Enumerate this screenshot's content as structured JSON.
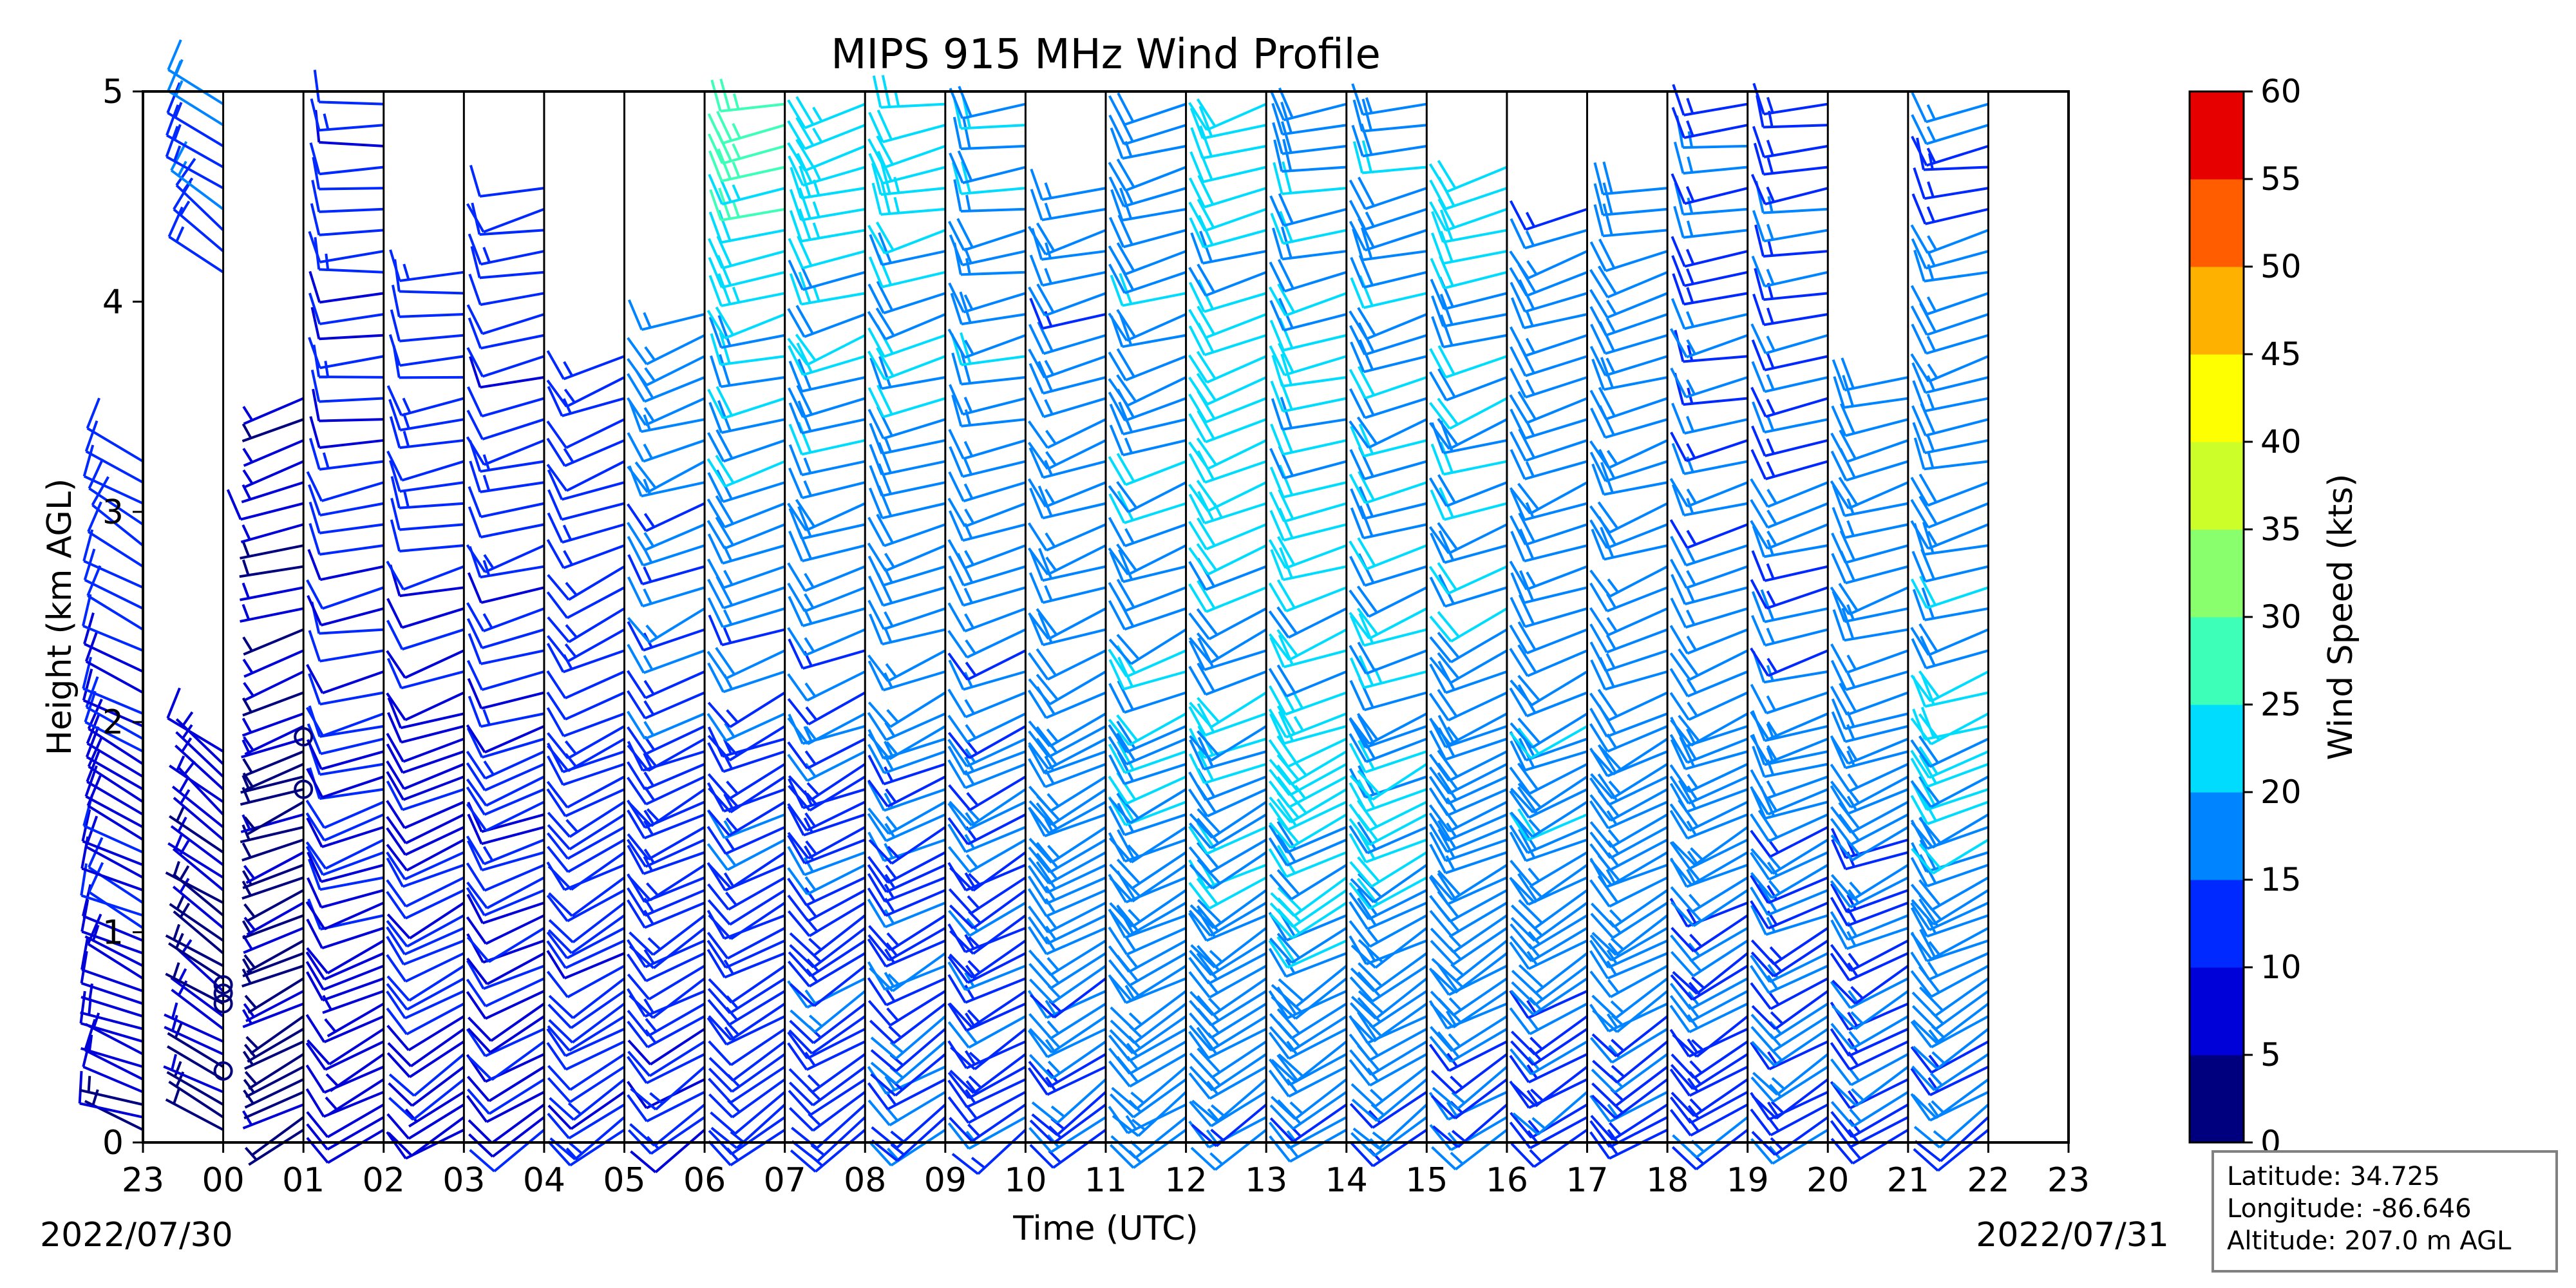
{
  "chart_data": {
    "type": "wind-barb-time-height",
    "title": "MIPS 915 MHz Wind Profile",
    "xlabel": "Time (UTC)",
    "ylabel": "Height (km AGL)",
    "x_tick_labels": [
      "23",
      "00",
      "01",
      "02",
      "03",
      "04",
      "05",
      "06",
      "07",
      "08",
      "09",
      "10",
      "11",
      "12",
      "13",
      "14",
      "15",
      "16",
      "17",
      "18",
      "19",
      "20",
      "21",
      "22",
      "23"
    ],
    "x_range_hours": [
      0,
      24
    ],
    "y_ticks": [
      0,
      1,
      2,
      3,
      4,
      5
    ],
    "ylim": [
      0,
      5
    ],
    "start_date": "2022/07/30",
    "end_date": "2022/07/31",
    "colorbar": {
      "label": "Wind Speed (kts)",
      "bounds": [
        0,
        5,
        10,
        15,
        20,
        25,
        30,
        35,
        40,
        45,
        50,
        55,
        60
      ],
      "colors": [
        "#00007f",
        "#0000d9",
        "#0029ff",
        "#0084ff",
        "#00dcfe",
        "#3effb8",
        "#8aff6d",
        "#ccff2a",
        "#feff00",
        "#ffb100",
        "#ff5d00",
        "#e60000",
        "#7f0000"
      ]
    },
    "station": {
      "latitude_label": "Latitude: 34.725",
      "longitude_label": "Longitude: -86.646",
      "altitude_label": "Altitude: 207.0 m AGL"
    },
    "profiles": [
      {
        "hour": 0,
        "top_km": 3.3,
        "gap": [],
        "low": {
          "spd": 6,
          "dir": 290
        },
        "mid": {
          "spd": 10,
          "dir": 300
        },
        "up": {
          "spd": 12,
          "dir": 300
        }
      },
      {
        "hour": 1,
        "top_km": 5.0,
        "gap": [
          1.9,
          4.1
        ],
        "low": {
          "spd": 4,
          "dir": 300
        },
        "mid": {
          "spd": 6,
          "dir": 310
        },
        "up": {
          "spd": 17,
          "dir": 305
        }
      },
      {
        "hour": 2,
        "top_km": 3.6,
        "gap": [],
        "low": {
          "spd": 3,
          "dir": 240
        },
        "mid": {
          "spd": 5,
          "dir": 250
        },
        "up": {
          "spd": 8,
          "dir": 260
        }
      },
      {
        "hour": 3,
        "top_km": 5.0,
        "gap": [],
        "low": {
          "spd": 8,
          "dir": 240
        },
        "mid": {
          "spd": 10,
          "dir": 255
        },
        "up": {
          "spd": 12,
          "dir": 270
        }
      },
      {
        "hour": 4,
        "top_km": 4.2,
        "gap": [],
        "low": {
          "spd": 9,
          "dir": 235
        },
        "mid": {
          "spd": 10,
          "dir": 250
        },
        "up": {
          "spd": 14,
          "dir": 270
        }
      },
      {
        "hour": 5,
        "top_km": 4.6,
        "gap": [],
        "low": {
          "spd": 10,
          "dir": 235
        },
        "mid": {
          "spd": 11,
          "dir": 250
        },
        "up": {
          "spd": 12,
          "dir": 260
        }
      },
      {
        "hour": 6,
        "top_km": 3.8,
        "gap": [],
        "low": {
          "spd": 11,
          "dir": 235
        },
        "mid": {
          "spd": 12,
          "dir": 245
        },
        "up": {
          "spd": 14,
          "dir": 255
        }
      },
      {
        "hour": 7,
        "top_km": 4.0,
        "gap": [],
        "low": {
          "spd": 11,
          "dir": 235
        },
        "mid": {
          "spd": 14,
          "dir": 245
        },
        "up": {
          "spd": 19,
          "dir": 255
        }
      },
      {
        "hour": 8,
        "top_km": 5.0,
        "gap": [],
        "low": {
          "spd": 12,
          "dir": 235
        },
        "mid": {
          "spd": 14,
          "dir": 245
        },
        "up": {
          "spd": 26,
          "dir": 260
        }
      },
      {
        "hour": 9,
        "top_km": 5.0,
        "gap": [],
        "low": {
          "spd": 13,
          "dir": 235
        },
        "mid": {
          "spd": 14,
          "dir": 245
        },
        "up": {
          "spd": 24,
          "dir": 255
        }
      },
      {
        "hour": 10,
        "top_km": 5.0,
        "gap": [],
        "low": {
          "spd": 14,
          "dir": 235
        },
        "mid": {
          "spd": 15,
          "dir": 245
        },
        "up": {
          "spd": 22,
          "dir": 260
        }
      },
      {
        "hour": 11,
        "top_km": 5.0,
        "gap": [],
        "low": {
          "spd": 14,
          "dir": 235
        },
        "mid": {
          "spd": 15,
          "dir": 245
        },
        "up": {
          "spd": 20,
          "dir": 265
        }
      },
      {
        "hour": 12,
        "top_km": 4.6,
        "gap": [],
        "low": {
          "spd": 15,
          "dir": 235
        },
        "mid": {
          "spd": 18,
          "dir": 245
        },
        "up": {
          "spd": 16,
          "dir": 260
        }
      },
      {
        "hour": 13,
        "top_km": 5.0,
        "gap": [],
        "low": {
          "spd": 15,
          "dir": 235
        },
        "mid": {
          "spd": 20,
          "dir": 245
        },
        "up": {
          "spd": 18,
          "dir": 255
        }
      },
      {
        "hour": 14,
        "top_km": 5.0,
        "gap": [],
        "low": {
          "spd": 16,
          "dir": 235
        },
        "mid": {
          "spd": 20,
          "dir": 245
        },
        "up": {
          "spd": 22,
          "dir": 255
        }
      },
      {
        "hour": 15,
        "top_km": 5.0,
        "gap": [],
        "low": {
          "spd": 15,
          "dir": 235
        },
        "mid": {
          "spd": 22,
          "dir": 245
        },
        "up": {
          "spd": 19,
          "dir": 260
        }
      },
      {
        "hour": 16,
        "top_km": 5.0,
        "gap": [],
        "low": {
          "spd": 15,
          "dir": 235
        },
        "mid": {
          "spd": 21,
          "dir": 245
        },
        "up": {
          "spd": 18,
          "dir": 260
        }
      },
      {
        "hour": 17,
        "top_km": 4.7,
        "gap": [],
        "low": {
          "spd": 15,
          "dir": 235
        },
        "mid": {
          "spd": 19,
          "dir": 245
        },
        "up": {
          "spd": 21,
          "dir": 255
        }
      },
      {
        "hour": 18,
        "top_km": 4.5,
        "gap": [],
        "low": {
          "spd": 14,
          "dir": 235
        },
        "mid": {
          "spd": 19,
          "dir": 245
        },
        "up": {
          "spd": 16,
          "dir": 255
        }
      },
      {
        "hour": 19,
        "top_km": 4.6,
        "gap": [],
        "low": {
          "spd": 14,
          "dir": 235
        },
        "mid": {
          "spd": 18,
          "dir": 245
        },
        "up": {
          "spd": 17,
          "dir": 260
        }
      },
      {
        "hour": 20,
        "top_km": 5.0,
        "gap": [],
        "low": {
          "spd": 14,
          "dir": 235
        },
        "mid": {
          "spd": 17,
          "dir": 245
        },
        "up": {
          "spd": 14,
          "dir": 265
        }
      },
      {
        "hour": 21,
        "top_km": 5.0,
        "gap": [],
        "low": {
          "spd": 14,
          "dir": 235
        },
        "mid": {
          "spd": 17,
          "dir": 250
        },
        "up": {
          "spd": 14,
          "dir": 265
        }
      },
      {
        "hour": 22,
        "top_km": 3.7,
        "gap": [],
        "low": {
          "spd": 13,
          "dir": 235
        },
        "mid": {
          "spd": 17,
          "dir": 250
        },
        "up": {
          "spd": 20,
          "dir": 260
        }
      },
      {
        "hour": 23,
        "top_km": 5.0,
        "gap": [],
        "low": {
          "spd": 14,
          "dir": 235
        },
        "mid": {
          "spd": 20,
          "dir": 250
        },
        "up": {
          "spd": 14,
          "dir": 260
        }
      }
    ],
    "calm_markers": [
      {
        "hour": 1,
        "km": 0.34
      },
      {
        "hour": 1,
        "km": 0.66
      },
      {
        "hour": 1,
        "km": 0.71
      },
      {
        "hour": 1,
        "km": 0.75
      },
      {
        "hour": 2,
        "km": 1.68
      },
      {
        "hour": 2,
        "km": 1.93
      }
    ]
  }
}
